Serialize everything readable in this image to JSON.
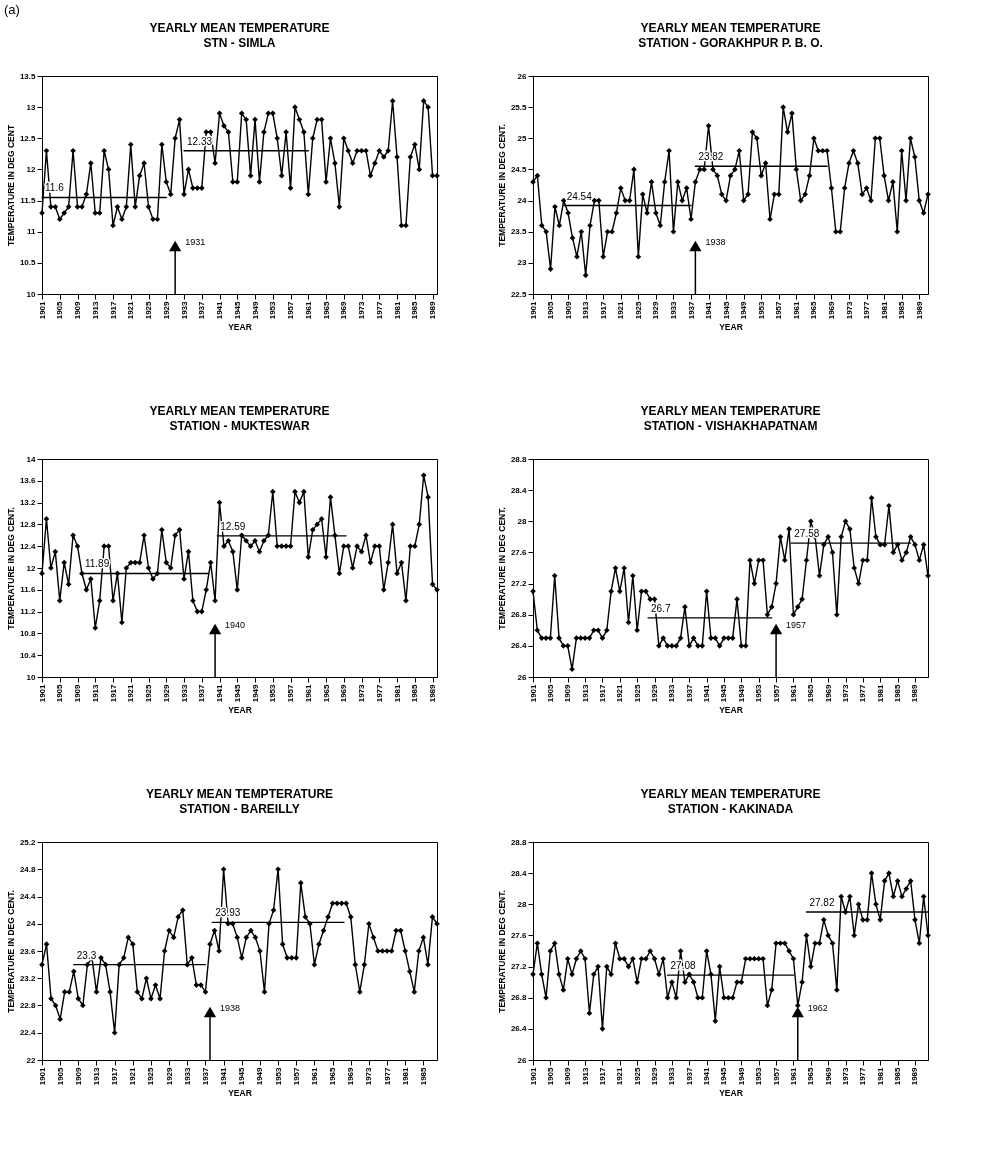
{
  "chart_data": [
    {
      "type": "line",
      "title": "YEARLY MEAN TEMPERATURE",
      "subtitle": "STN - SIMLA",
      "xlabel": "YEAR",
      "ylabel": "TEMPERATURE IN DEG CENT",
      "marker": "diamond",
      "x": [
        1901,
        1902,
        1903,
        1904,
        1905,
        1906,
        1907,
        1908,
        1909,
        1910,
        1911,
        1912,
        1913,
        1914,
        1915,
        1916,
        1917,
        1918,
        1919,
        1920,
        1921,
        1922,
        1923,
        1924,
        1925,
        1926,
        1927,
        1928,
        1929,
        1930,
        1931,
        1932,
        1933,
        1934,
        1935,
        1936,
        1937,
        1938,
        1939,
        1940,
        1941,
        1942,
        1943,
        1944,
        1945,
        1946,
        1947,
        1948,
        1949,
        1950,
        1951,
        1952,
        1953,
        1954,
        1955,
        1956,
        1957,
        1958,
        1959,
        1960,
        1961,
        1962,
        1963,
        1964,
        1965,
        1966,
        1967,
        1968,
        1969,
        1970,
        1971,
        1972,
        1973,
        1974,
        1975,
        1976,
        1977,
        1978,
        1979,
        1980,
        1981,
        1982,
        1983,
        1984,
        1985,
        1986,
        1987,
        1988,
        1989,
        1990
      ],
      "xlim": [
        1901,
        1990
      ],
      "xticks": [
        1901,
        1905,
        1909,
        1913,
        1917,
        1921,
        1925,
        1929,
        1933,
        1937,
        1941,
        1945,
        1949,
        1953,
        1957,
        1961,
        1965,
        1969,
        1973,
        1977,
        1981,
        1985,
        1989
      ],
      "ylim": [
        10,
        13.5
      ],
      "yticks": [
        10,
        10.5,
        11,
        11.5,
        12,
        12.5,
        13,
        13.5
      ],
      "series": [
        {
          "color": "#000000",
          "values": [
            11.3,
            12.3,
            11.4,
            11.4,
            11.2,
            11.3,
            11.4,
            12.3,
            11.4,
            11.4,
            11.6,
            12.1,
            11.3,
            11.3,
            12.3,
            12.0,
            11.1,
            11.4,
            11.2,
            11.4,
            12.4,
            11.4,
            11.9,
            12.1,
            11.4,
            11.2,
            11.2,
            12.4,
            11.8,
            11.6,
            12.5,
            12.8,
            11.6,
            12.0,
            11.7,
            11.7,
            11.7,
            12.6,
            12.6,
            12.1,
            12.9,
            12.7,
            12.6,
            11.8,
            11.8,
            12.9,
            12.8,
            11.9,
            12.8,
            11.8,
            12.6,
            12.9,
            12.9,
            12.5,
            11.9,
            12.6,
            11.7,
            13.0,
            12.8,
            12.6,
            11.6,
            12.5,
            12.8,
            12.8,
            11.8,
            12.5,
            12.1,
            11.4,
            12.5,
            12.3,
            12.1,
            12.3,
            12.3,
            12.3,
            11.9,
            12.1,
            12.3,
            12.2,
            12.3,
            13.1,
            12.2,
            11.1,
            11.1,
            12.2,
            12.4,
            12.0,
            13.1,
            13.0,
            11.9,
            11.9
          ]
        },
        {
          "type": "line",
          "marker": "none",
          "name": "11.6",
          "color": "#000000",
          "x": [
            1901,
            1929
          ],
          "values": [
            11.55,
            11.55
          ]
        },
        {
          "type": "line",
          "marker": "none",
          "name": "12.33",
          "color": "#000000",
          "x": [
            1933,
            1961
          ],
          "values": [
            12.3,
            12.3
          ]
        }
      ],
      "ref_lines": [
        {
          "axis": "x",
          "value": 1931,
          "label": "1931"
        }
      ],
      "annotations": [
        "(a)"
      ]
    },
    {
      "type": "line",
      "title": "YEARLY MEAN TEMPERATURE",
      "subtitle": "STATION - GORAKHPUR P. B. O.",
      "xlabel": "YEAR",
      "ylabel": "TEMPERATURE IN DEG CENT.",
      "marker": "diamond",
      "x": [
        1901,
        1902,
        1903,
        1904,
        1905,
        1906,
        1907,
        1908,
        1909,
        1910,
        1911,
        1912,
        1913,
        1914,
        1915,
        1916,
        1917,
        1918,
        1919,
        1920,
        1921,
        1922,
        1923,
        1924,
        1925,
        1926,
        1927,
        1928,
        1929,
        1930,
        1931,
        1932,
        1933,
        1934,
        1935,
        1936,
        1937,
        1938,
        1939,
        1940,
        1941,
        1942,
        1943,
        1944,
        1945,
        1946,
        1947,
        1948,
        1949,
        1950,
        1951,
        1952,
        1953,
        1954,
        1955,
        1956,
        1957,
        1958,
        1959,
        1960,
        1961,
        1962,
        1963,
        1964,
        1965,
        1966,
        1967,
        1968,
        1969,
        1970,
        1971,
        1972,
        1973,
        1974,
        1975,
        1976,
        1977,
        1978,
        1979,
        1980,
        1981,
        1982,
        1983,
        1984,
        1985,
        1986,
        1987,
        1988,
        1989,
        1990,
        1991
      ],
      "xlim": [
        1901,
        1991
      ],
      "xticks": [
        1901,
        1905,
        1909,
        1913,
        1917,
        1921,
        1925,
        1929,
        1933,
        1937,
        1941,
        1945,
        1949,
        1953,
        1957,
        1961,
        1965,
        1969,
        1973,
        1977,
        1981,
        1985,
        1989
      ],
      "ylim": [
        22.5,
        26
      ],
      "yticks": [
        22.5,
        23,
        23.5,
        24,
        24.5,
        25,
        25.5,
        26
      ],
      "series": [
        {
          "color": "#000000",
          "values": [
            24.3,
            24.4,
            23.6,
            23.5,
            22.9,
            23.9,
            23.6,
            24.0,
            23.8,
            23.4,
            23.1,
            23.5,
            22.8,
            23.6,
            24.0,
            24.0,
            23.1,
            23.5,
            23.5,
            23.8,
            24.2,
            24.0,
            24.0,
            24.5,
            23.1,
            24.1,
            23.8,
            24.3,
            23.8,
            23.6,
            24.3,
            24.8,
            23.5,
            24.3,
            24.0,
            24.2,
            23.7,
            24.3,
            24.5,
            24.5,
            25.2,
            24.5,
            24.4,
            24.1,
            24.0,
            24.4,
            24.5,
            24.8,
            24.0,
            24.1,
            25.1,
            25.0,
            24.4,
            24.6,
            23.7,
            24.1,
            24.1,
            25.5,
            25.1,
            25.4,
            24.5,
            24.0,
            24.1,
            24.4,
            25.0,
            24.8,
            24.8,
            24.8,
            24.2,
            23.5,
            23.5,
            24.2,
            24.6,
            24.8,
            24.6,
            24.1,
            24.2,
            24.0,
            25.0,
            25.0,
            24.4,
            24.0,
            24.3,
            23.5,
            24.8,
            24.0,
            25.0,
            24.7,
            24.0,
            23.8,
            24.1
          ]
        },
        {
          "type": "line",
          "marker": "none",
          "name": "24.54",
          "color": "#000000",
          "x": [
            1908,
            1937
          ],
          "values": [
            23.92,
            23.92
          ]
        },
        {
          "type": "line",
          "marker": "none",
          "name": "23.82",
          "color": "#000000",
          "x": [
            1938,
            1968
          ],
          "values": [
            24.55,
            24.55
          ]
        }
      ],
      "ref_lines": [
        {
          "axis": "x",
          "value": 1938,
          "label": "1938"
        }
      ]
    },
    {
      "type": "line",
      "title": "YEARLY MEAN TEMPERATURE",
      "subtitle": "STATION - MUKTESWAR",
      "xlabel": "YEAR",
      "ylabel": "TEMPERATURE IN DEG CENT.",
      "marker": "diamond",
      "x": [
        1901,
        1902,
        1903,
        1904,
        1905,
        1906,
        1907,
        1908,
        1909,
        1910,
        1911,
        1912,
        1913,
        1914,
        1915,
        1916,
        1917,
        1918,
        1919,
        1920,
        1921,
        1922,
        1923,
        1924,
        1925,
        1926,
        1927,
        1928,
        1929,
        1930,
        1931,
        1932,
        1933,
        1934,
        1935,
        1936,
        1937,
        1938,
        1939,
        1940,
        1941,
        1942,
        1943,
        1944,
        1945,
        1946,
        1947,
        1948,
        1949,
        1950,
        1951,
        1952,
        1953,
        1954,
        1955,
        1956,
        1957,
        1958,
        1959,
        1960,
        1961,
        1962,
        1963,
        1964,
        1965,
        1966,
        1967,
        1968,
        1969,
        1970,
        1971,
        1972,
        1973,
        1974,
        1975,
        1976,
        1977,
        1978,
        1979,
        1980,
        1981,
        1982,
        1983,
        1984,
        1985,
        1986,
        1987,
        1988,
        1989,
        1990
      ],
      "xlim": [
        1901,
        1990
      ],
      "xticks": [
        1901,
        1905,
        1909,
        1913,
        1917,
        1921,
        1925,
        1929,
        1933,
        1937,
        1941,
        1945,
        1949,
        1953,
        1957,
        1961,
        1965,
        1969,
        1973,
        1977,
        1981,
        1985,
        1989
      ],
      "ylim": [
        10,
        14
      ],
      "yticks": [
        10,
        10.4,
        10.8,
        11.2,
        11.6,
        12,
        12.4,
        12.8,
        13.2,
        13.6,
        14
      ],
      "series": [
        {
          "color": "#000000",
          "values": [
            11.9,
            12.9,
            12.0,
            12.3,
            11.4,
            12.1,
            11.7,
            12.6,
            12.4,
            11.9,
            11.6,
            11.8,
            10.9,
            11.4,
            12.4,
            12.4,
            11.4,
            11.9,
            11.0,
            12.0,
            12.1,
            12.1,
            12.1,
            12.6,
            12.0,
            11.8,
            11.9,
            12.7,
            12.1,
            12.0,
            12.6,
            12.7,
            11.8,
            12.3,
            11.4,
            11.2,
            11.2,
            11.6,
            12.1,
            11.4,
            13.2,
            12.4,
            12.5,
            12.3,
            11.6,
            12.6,
            12.5,
            12.4,
            12.5,
            12.3,
            12.5,
            12.6,
            13.4,
            12.4,
            12.4,
            12.4,
            12.4,
            13.4,
            13.2,
            13.4,
            12.2,
            12.7,
            12.8,
            12.9,
            12.2,
            13.3,
            12.6,
            11.9,
            12.4,
            12.4,
            12.0,
            12.4,
            12.3,
            12.6,
            12.1,
            12.4,
            12.4,
            11.6,
            12.1,
            12.8,
            11.9,
            12.1,
            11.4,
            12.4,
            12.4,
            12.8,
            13.7,
            13.3,
            11.7,
            11.6
          ]
        },
        {
          "type": "line",
          "marker": "none",
          "name": "11.89",
          "color": "#000000",
          "x": [
            1910,
            1938.5
          ],
          "values": [
            11.9,
            11.9
          ]
        },
        {
          "type": "line",
          "marker": "none",
          "name": "12.59",
          "color": "#000000",
          "x": [
            1940.5,
            1969.5
          ],
          "values": [
            12.59,
            12.59
          ]
        }
      ],
      "ref_lines": [
        {
          "axis": "x",
          "value": 1940,
          "label": "1940"
        }
      ]
    },
    {
      "type": "line",
      "title": "YEARLY MEAN TEMPERATURE",
      "subtitle": "STATION - VISHAKHAPATNAM",
      "xlabel": "YEAR",
      "ylabel": "TEMPERATURE IN DEG CENT.",
      "marker": "diamond",
      "x": [
        1901,
        1902,
        1903,
        1904,
        1905,
        1906,
        1907,
        1908,
        1909,
        1910,
        1911,
        1912,
        1913,
        1914,
        1915,
        1916,
        1917,
        1918,
        1919,
        1920,
        1921,
        1922,
        1923,
        1924,
        1925,
        1926,
        1927,
        1928,
        1929,
        1930,
        1931,
        1932,
        1933,
        1934,
        1935,
        1936,
        1937,
        1938,
        1939,
        1940,
        1941,
        1942,
        1943,
        1944,
        1945,
        1946,
        1947,
        1948,
        1949,
        1950,
        1951,
        1952,
        1953,
        1954,
        1955,
        1956,
        1957,
        1958,
        1959,
        1960,
        1961,
        1962,
        1963,
        1964,
        1965,
        1966,
        1967,
        1968,
        1969,
        1970,
        1971,
        1972,
        1973,
        1974,
        1975,
        1976,
        1977,
        1978,
        1979,
        1980,
        1981,
        1982,
        1983,
        1984,
        1985,
        1986,
        1987,
        1988,
        1989,
        1990,
        1991,
        1992
      ],
      "xlim": [
        1901,
        1992
      ],
      "xticks": [
        1901,
        1905,
        1909,
        1913,
        1917,
        1921,
        1925,
        1929,
        1933,
        1937,
        1941,
        1945,
        1949,
        1953,
        1957,
        1961,
        1965,
        1969,
        1973,
        1977,
        1981,
        1985,
        1989
      ],
      "ylim": [
        26,
        28.8
      ],
      "yticks": [
        26,
        26.4,
        26.8,
        27.2,
        27.6,
        28,
        28.4,
        28.8
      ],
      "series": [
        {
          "color": "#000000",
          "values": [
            27.1,
            26.6,
            26.5,
            26.5,
            26.5,
            27.3,
            26.5,
            26.4,
            26.4,
            26.1,
            26.5,
            26.5,
            26.5,
            26.5,
            26.6,
            26.6,
            26.5,
            26.6,
            27.1,
            27.4,
            27.1,
            27.4,
            26.7,
            27.3,
            26.6,
            27.1,
            27.1,
            27.0,
            27.0,
            26.4,
            26.5,
            26.4,
            26.4,
            26.4,
            26.5,
            26.9,
            26.4,
            26.5,
            26.4,
            26.4,
            27.1,
            26.5,
            26.5,
            26.4,
            26.5,
            26.5,
            26.5,
            27.0,
            26.4,
            26.4,
            27.5,
            27.2,
            27.5,
            27.5,
            26.8,
            26.9,
            27.2,
            27.8,
            27.5,
            27.9,
            26.8,
            26.9,
            27.0,
            27.5,
            28.0,
            27.8,
            27.3,
            27.7,
            27.8,
            27.6,
            26.8,
            27.8,
            28.0,
            27.9,
            27.4,
            27.2,
            27.5,
            27.5,
            28.3,
            27.8,
            27.7,
            27.7,
            28.2,
            27.6,
            27.7,
            27.5,
            27.6,
            27.8,
            27.7,
            27.5,
            27.7,
            27.3
          ]
        },
        {
          "type": "line",
          "marker": "none",
          "name": "26.7",
          "color": "#000000",
          "x": [
            1927.5,
            1956
          ],
          "values": [
            26.76,
            26.76
          ]
        },
        {
          "type": "line",
          "marker": "none",
          "name": "27.58",
          "color": "#000000",
          "x": [
            1960.5,
            1988
          ],
          "values": [
            27.72,
            27.72
          ]
        }
      ],
      "ref_lines": [
        {
          "axis": "x",
          "value": 1957,
          "label": "1957"
        }
      ]
    },
    {
      "type": "line",
      "title": "YEARLY MEAN TEMPTERATURE",
      "subtitle": "STATION - BAREILLY",
      "xlabel": "YEAR",
      "ylabel": "TEMPERATURE IN DEG CENT.",
      "marker": "diamond",
      "x": [
        1901,
        1902,
        1903,
        1904,
        1905,
        1906,
        1907,
        1908,
        1909,
        1910,
        1911,
        1912,
        1913,
        1914,
        1915,
        1916,
        1917,
        1918,
        1919,
        1920,
        1921,
        1922,
        1923,
        1924,
        1925,
        1926,
        1927,
        1928,
        1929,
        1930,
        1931,
        1932,
        1933,
        1934,
        1935,
        1936,
        1937,
        1938,
        1939,
        1940,
        1941,
        1942,
        1943,
        1944,
        1945,
        1946,
        1947,
        1948,
        1949,
        1950,
        1951,
        1952,
        1953,
        1954,
        1955,
        1956,
        1957,
        1958,
        1959,
        1960,
        1961,
        1962,
        1963,
        1964,
        1965,
        1966,
        1967,
        1968,
        1969,
        1970,
        1971,
        1972,
        1973,
        1974,
        1975,
        1976,
        1977,
        1978,
        1979,
        1980,
        1981,
        1982,
        1983,
        1984,
        1985,
        1986,
        1987,
        1988
      ],
      "xlim": [
        1901,
        1988
      ],
      "xticks": [
        1901,
        1905,
        1909,
        1913,
        1917,
        1921,
        1925,
        1929,
        1933,
        1937,
        1941,
        1945,
        1949,
        1953,
        1957,
        1961,
        1965,
        1969,
        1973,
        1977,
        1981,
        1985
      ],
      "ylim": [
        22,
        25.2
      ],
      "yticks": [
        22,
        22.4,
        22.8,
        23.2,
        23.6,
        24,
        24.4,
        24.8,
        25.2
      ],
      "series": [
        {
          "color": "#000000",
          "values": [
            23.4,
            23.7,
            22.9,
            22.8,
            22.6,
            23.0,
            23.0,
            23.3,
            22.9,
            22.8,
            23.4,
            23.5,
            23.0,
            23.5,
            23.4,
            23.0,
            22.4,
            23.4,
            23.5,
            23.8,
            23.7,
            23.0,
            22.9,
            23.2,
            22.9,
            23.1,
            22.9,
            23.6,
            23.9,
            23.8,
            24.1,
            24.2,
            23.4,
            23.5,
            23.1,
            23.1,
            23.0,
            23.7,
            23.9,
            23.6,
            24.8,
            24.0,
            24.0,
            23.8,
            23.5,
            23.8,
            23.9,
            23.8,
            23.6,
            23.0,
            24.0,
            24.2,
            24.8,
            23.7,
            23.5,
            23.5,
            23.5,
            24.6,
            24.1,
            24.0,
            23.4,
            23.7,
            23.9,
            24.1,
            24.3,
            24.3,
            24.3,
            24.3,
            24.1,
            23.4,
            23.0,
            23.4,
            24.0,
            23.8,
            23.6,
            23.6,
            23.6,
            23.6,
            23.9,
            23.9,
            23.6,
            23.3,
            23.0,
            23.6,
            23.8,
            23.4,
            24.1,
            24.0
          ]
        },
        {
          "type": "line",
          "marker": "none",
          "name": "23.3",
          "color": "#000000",
          "x": [
            1908,
            1937
          ],
          "values": [
            23.4,
            23.4
          ]
        },
        {
          "type": "line",
          "marker": "none",
          "name": "23.93",
          "color": "#000000",
          "x": [
            1938.5,
            1967.5
          ],
          "values": [
            24.02,
            24.02
          ]
        }
      ],
      "ref_lines": [
        {
          "axis": "x",
          "value": 1938,
          "label": "1938"
        }
      ]
    },
    {
      "type": "line",
      "title": "YEARLY MEAN TEMPERATURE",
      "subtitle": "STATION - KAKINADA",
      "xlabel": "YEAR",
      "ylabel": "TEMPERATURE IN DEG CENT.",
      "marker": "diamond",
      "x": [
        1901,
        1902,
        1903,
        1904,
        1905,
        1906,
        1907,
        1908,
        1909,
        1910,
        1911,
        1912,
        1913,
        1914,
        1915,
        1916,
        1917,
        1918,
        1919,
        1920,
        1921,
        1922,
        1923,
        1924,
        1925,
        1926,
        1927,
        1928,
        1929,
        1930,
        1931,
        1932,
        1933,
        1934,
        1935,
        1936,
        1937,
        1938,
        1939,
        1940,
        1941,
        1942,
        1943,
        1944,
        1945,
        1946,
        1947,
        1948,
        1949,
        1950,
        1951,
        1952,
        1953,
        1954,
        1955,
        1956,
        1957,
        1958,
        1959,
        1960,
        1961,
        1962,
        1963,
        1964,
        1965,
        1966,
        1967,
        1968,
        1969,
        1970,
        1971,
        1972,
        1973,
        1974,
        1975,
        1976,
        1977,
        1978,
        1979,
        1980,
        1981,
        1982,
        1983,
        1984,
        1985,
        1986,
        1987,
        1988,
        1989,
        1990,
        1991,
        1992
      ],
      "xlim": [
        1901,
        1992
      ],
      "xticks": [
        1901,
        1905,
        1909,
        1913,
        1917,
        1921,
        1925,
        1929,
        1933,
        1937,
        1941,
        1945,
        1949,
        1953,
        1957,
        1961,
        1965,
        1969,
        1973,
        1977,
        1981,
        1985,
        1989
      ],
      "ylim": [
        26,
        28.8
      ],
      "yticks": [
        26,
        26.4,
        26.8,
        27.2,
        27.6,
        28,
        28.4,
        28.8
      ],
      "series": [
        {
          "color": "#000000",
          "values": [
            27.1,
            27.5,
            27.1,
            26.8,
            27.4,
            27.5,
            27.1,
            26.9,
            27.3,
            27.1,
            27.3,
            27.4,
            27.3,
            26.6,
            27.1,
            27.2,
            26.4,
            27.2,
            27.1,
            27.5,
            27.3,
            27.3,
            27.2,
            27.3,
            27.0,
            27.3,
            27.3,
            27.4,
            27.3,
            27.1,
            27.3,
            26.8,
            27.0,
            26.8,
            27.4,
            27.0,
            27.1,
            27.0,
            26.8,
            26.8,
            27.4,
            27.1,
            26.5,
            27.2,
            26.8,
            26.8,
            26.8,
            27.0,
            27.0,
            27.3,
            27.3,
            27.3,
            27.3,
            27.3,
            26.7,
            26.9,
            27.5,
            27.5,
            27.5,
            27.4,
            27.3,
            26.7,
            27.0,
            27.6,
            27.2,
            27.5,
            27.5,
            27.8,
            27.6,
            27.5,
            26.9,
            28.1,
            27.9,
            28.1,
            27.6,
            28.0,
            27.8,
            27.8,
            28.4,
            28.0,
            27.8,
            28.3,
            28.4,
            28.1,
            28.3,
            28.1,
            28.2,
            28.3,
            27.8,
            27.5,
            28.1,
            27.6
          ]
        },
        {
          "type": "line",
          "marker": "none",
          "name": "27.08",
          "color": "#000000",
          "x": [
            1932,
            1961
          ],
          "values": [
            27.09,
            27.09
          ]
        },
        {
          "type": "line",
          "marker": "none",
          "name": "27.82",
          "color": "#000000",
          "x": [
            1964,
            1992
          ],
          "values": [
            27.9,
            27.9
          ]
        }
      ],
      "ref_lines": [
        {
          "axis": "x",
          "value": 1962,
          "label": "1962"
        }
      ]
    }
  ]
}
